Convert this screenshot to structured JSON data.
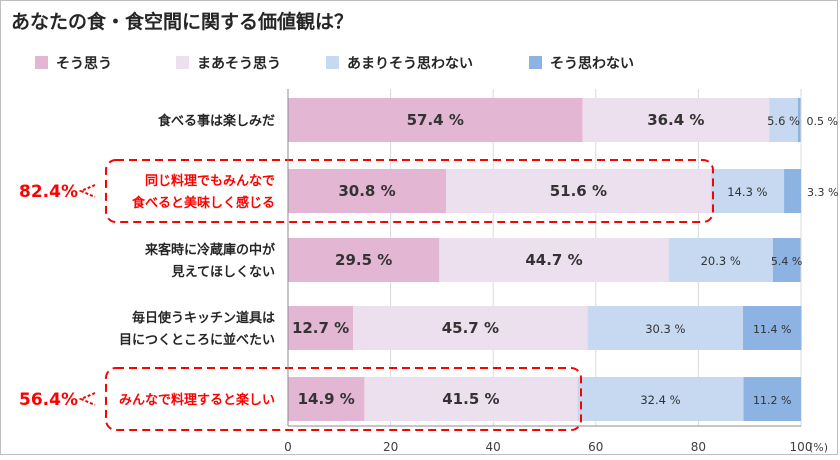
{
  "chart_data": {
    "type": "bar",
    "stacked": true,
    "orientation": "horizontal",
    "title": "あなたの食・食空間に関する価値観は？",
    "categories": [
      [
        "食べる事は楽しみだ"
      ],
      [
        "同じ料理でもみんなで",
        "食べると美味しく感じる"
      ],
      [
        "来客時に冷蔵庫の中が",
        "見えてほしくない"
      ],
      [
        "毎日使うキッチン道具は",
        "目につくところに並べたい"
      ],
      [
        "みんなで料理すると楽しい"
      ]
    ],
    "series": [
      {
        "name": "そう思う",
        "color": "#e3b6d3",
        "values": [
          57.4,
          30.8,
          29.5,
          12.7,
          14.9
        ]
      },
      {
        "name": "まあそう思う",
        "color": "#ede0ee",
        "values": [
          36.4,
          51.6,
          44.7,
          45.7,
          41.5
        ]
      },
      {
        "name": "あまりそう思わない",
        "color": "#c6d9f1",
        "values": [
          5.6,
          14.3,
          20.3,
          30.3,
          32.4
        ]
      },
      {
        "name": "そう思わない",
        "color": "#8db3e2",
        "values": [
          0.5,
          3.3,
          5.4,
          11.4,
          11.2
        ]
      }
    ],
    "value_labels": [
      [
        "57.4 %",
        "36.4 %",
        "5.6 %",
        "0.5 %"
      ],
      [
        "30.8 %",
        "51.6 %",
        "14.3 %",
        "3.3 %"
      ],
      [
        "29.5 %",
        "44.7 %",
        "20.3 %",
        "5.4 %"
      ],
      [
        "12.7 %",
        "45.7 %",
        "30.3 %",
        "11.4 %"
      ],
      [
        "14.9 %",
        "41.5 %",
        "32.4 %",
        "11.2 %"
      ]
    ],
    "highlights": [
      {
        "category_index": 1,
        "label": "82.4%"
      },
      {
        "category_index": 4,
        "label": "56.4%"
      }
    ],
    "highlight_color": "#ff0000",
    "xlim": [
      0,
      100
    ],
    "xticks": [
      0,
      20,
      40,
      60,
      80,
      100
    ],
    "x_unit": "(%)",
    "legend_position": "top",
    "grid": true
  }
}
